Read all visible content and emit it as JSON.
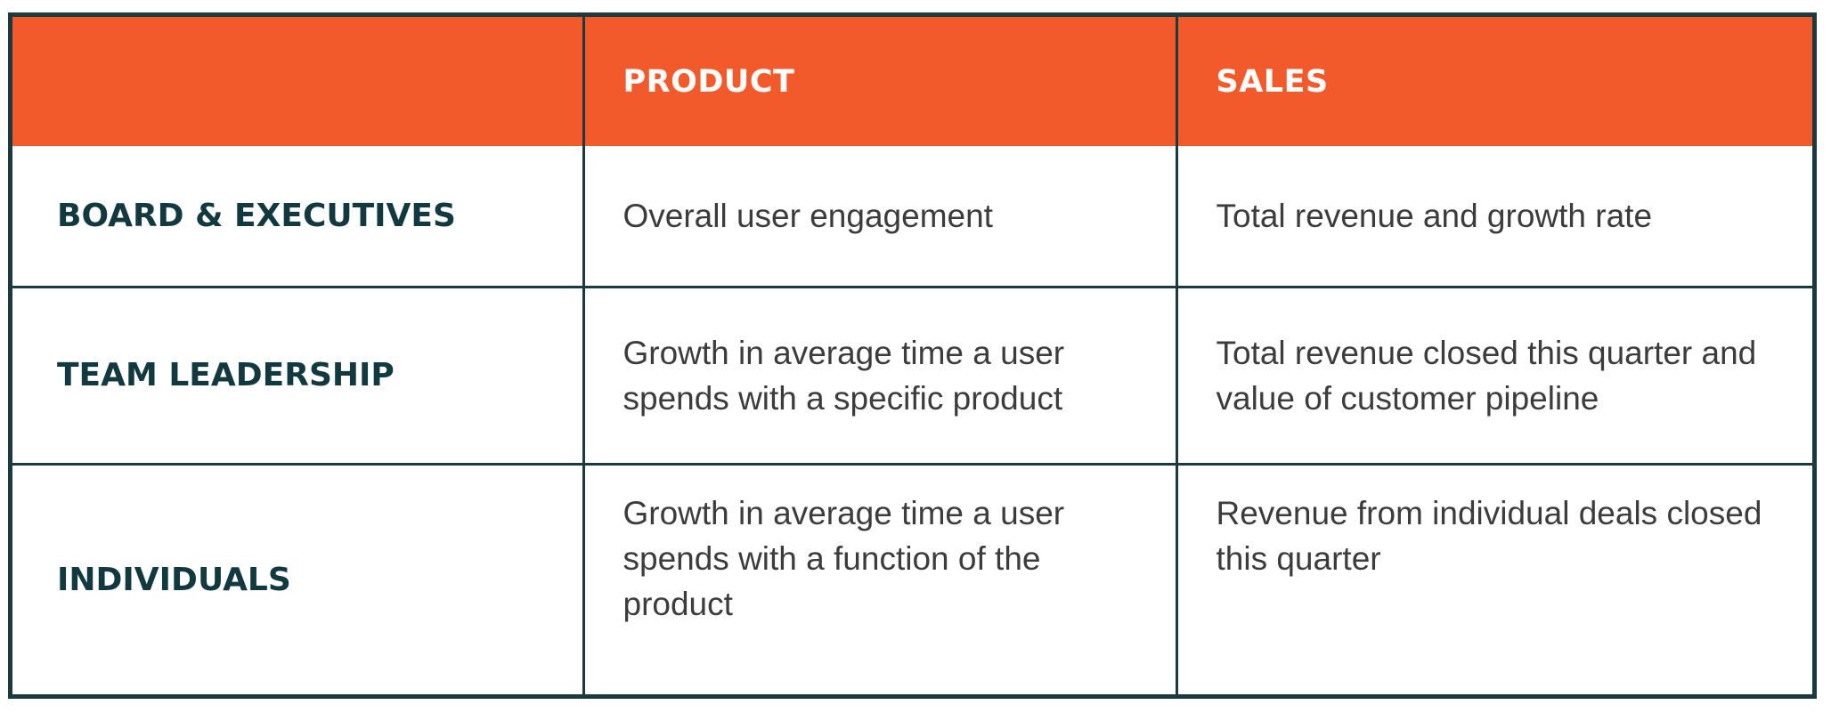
{
  "table": {
    "headers": [
      "",
      "PRODUCT",
      "SALES"
    ],
    "rows": [
      {
        "label": "BOARD & EXECUTIVES",
        "product": "Overall user engagement",
        "sales": "Total revenue and growth rate"
      },
      {
        "label": "TEAM LEADERSHIP",
        "product": "Growth in average time a user spends with a specific product",
        "sales": "Total revenue closed this quarter and value of customer pipeline"
      },
      {
        "label": "INDIVIDUALS",
        "product": "Growth in average time a user spends with a function of the product",
        "sales": "Revenue from individual deals closed this quarter"
      }
    ]
  },
  "colors": {
    "header_bg": "#f25a2b",
    "header_text": "#ffffff",
    "border": "#1b3a3f",
    "row_label": "#12393f",
    "cell_text": "#3c3c3c"
  }
}
